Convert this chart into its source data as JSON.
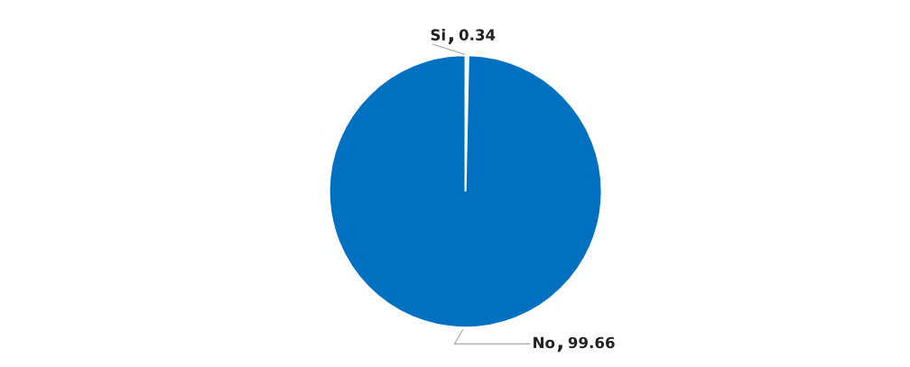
{
  "chart_data": {
    "type": "pie",
    "categories": [
      "Si",
      "No"
    ],
    "values": [
      0.34,
      99.66
    ],
    "colors": [
      "#bdd7ee",
      "#0070c0"
    ],
    "data_labels": true,
    "legend": false
  }
}
